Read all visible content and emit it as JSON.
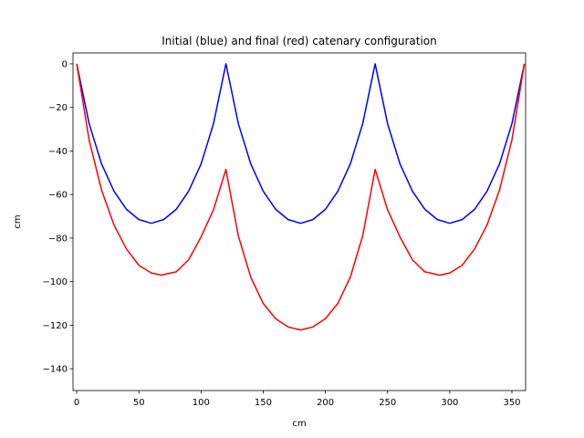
{
  "chart_data": {
    "type": "line",
    "title": "Initial (blue) and final (red) catenary configuration",
    "xlabel": "cm",
    "ylabel": "cm",
    "xlim": [
      -3,
      361
    ],
    "ylim": [
      -150,
      5
    ],
    "xticks": [
      0,
      50,
      100,
      150,
      200,
      250,
      300,
      350
    ],
    "yticks": [
      0,
      -20,
      -40,
      -60,
      -80,
      -100,
      -120,
      -140
    ],
    "xtick_labels": [
      "0",
      "50",
      "100",
      "150",
      "200",
      "250",
      "300",
      "350"
    ],
    "ytick_labels": [
      "0",
      "−20",
      "−40",
      "−60",
      "−80",
      "−100",
      "−120",
      "−140"
    ],
    "grid": false,
    "series": [
      {
        "color": "#0000ff",
        "x": [
          0,
          10,
          20,
          30,
          40,
          50,
          60,
          70,
          80,
          90,
          100,
          110,
          120,
          130,
          140,
          150,
          160,
          170,
          180,
          190,
          200,
          210,
          220,
          230,
          240,
          250,
          260,
          270,
          280,
          290,
          300,
          310,
          320,
          330,
          340,
          350,
          360
        ],
        "y": [
          0,
          -27.5,
          -46,
          -58.5,
          -66.8,
          -71.5,
          -73.2,
          -71.5,
          -66.8,
          -58.5,
          -46,
          -27.5,
          0,
          -27.5,
          -46,
          -58.5,
          -66.8,
          -71.5,
          -73.2,
          -71.5,
          -66.8,
          -58.5,
          -46,
          -27.5,
          0,
          -27.5,
          -46,
          -58.5,
          -66.8,
          -71.5,
          -73.2,
          -71.5,
          -66.8,
          -58.5,
          -46,
          -27.5,
          0
        ]
      },
      {
        "color": "#ff0000",
        "x": [
          0,
          10,
          20,
          30,
          40,
          50,
          60,
          68,
          80,
          90,
          100,
          110,
          120,
          130,
          140,
          150,
          160,
          170,
          180,
          190,
          200,
          210,
          220,
          230,
          240,
          250,
          260,
          270,
          280,
          292,
          300,
          310,
          320,
          330,
          340,
          350,
          360
        ],
        "y": [
          0,
          -35,
          -58,
          -74,
          -85,
          -92.5,
          -96,
          -97,
          -95.5,
          -90,
          -79.5,
          -67,
          -48.5,
          -79,
          -98,
          -110,
          -117,
          -120.8,
          -122.2,
          -120.8,
          -117,
          -110,
          -98,
          -79,
          -48.5,
          -67,
          -79.5,
          -90,
          -95.5,
          -97,
          -96,
          -92.5,
          -85,
          -74,
          -58,
          -35,
          0
        ]
      }
    ]
  }
}
